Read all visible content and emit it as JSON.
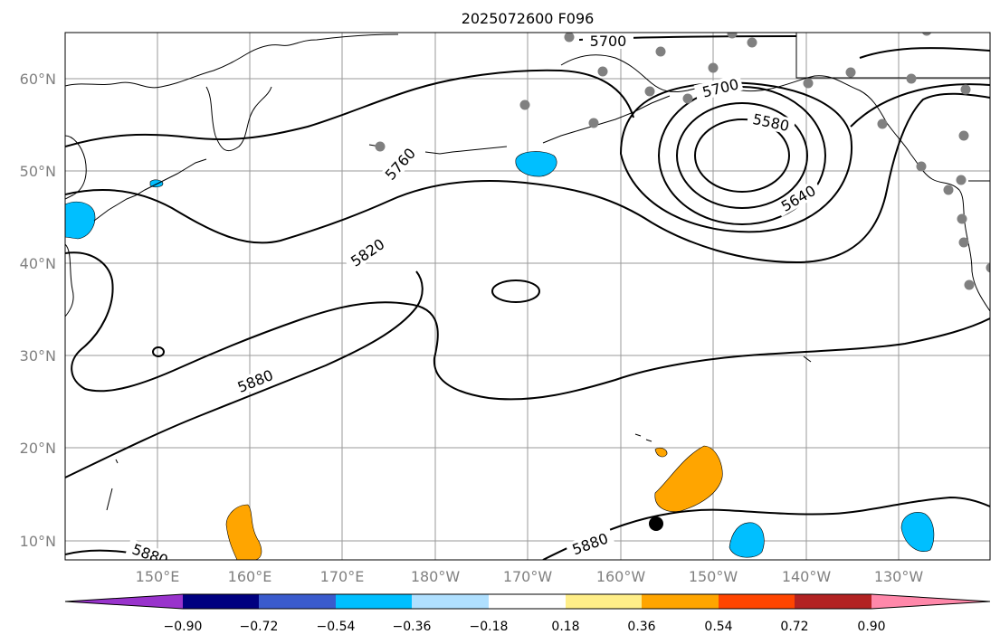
{
  "title": "2025072600 F096",
  "map": {
    "lat_labels": [
      "60°N",
      "50°N",
      "40°N",
      "30°N",
      "20°N",
      "10°N"
    ],
    "lon_labels": [
      "150°E",
      "160°E",
      "170°E",
      "180°W",
      "170°W",
      "160°W",
      "150°W",
      "140°W",
      "130°W"
    ],
    "contour_labels": [
      "5700",
      "5700",
      "5580",
      "5640",
      "5760",
      "5820",
      "5880",
      "5880",
      "5880"
    ],
    "contour_line_color": "#000000",
    "coast_color": "#000000",
    "grid_color": "#9a9a9a",
    "station_color": "#808080"
  },
  "colorbar": {
    "colors": [
      "#9933cc",
      "#000080",
      "#3a5bcd",
      "#00bfff",
      "#b0e0ff",
      "#ffffff",
      "#ffee88",
      "#ffa500",
      "#ff4500",
      "#b22222",
      "#ff88aa"
    ],
    "tick_labels": [
      "−0.90",
      "−0.72",
      "−0.54",
      "−0.36",
      "−0.18",
      "0.18",
      "0.36",
      "0.54",
      "0.72",
      "0.90"
    ]
  }
}
